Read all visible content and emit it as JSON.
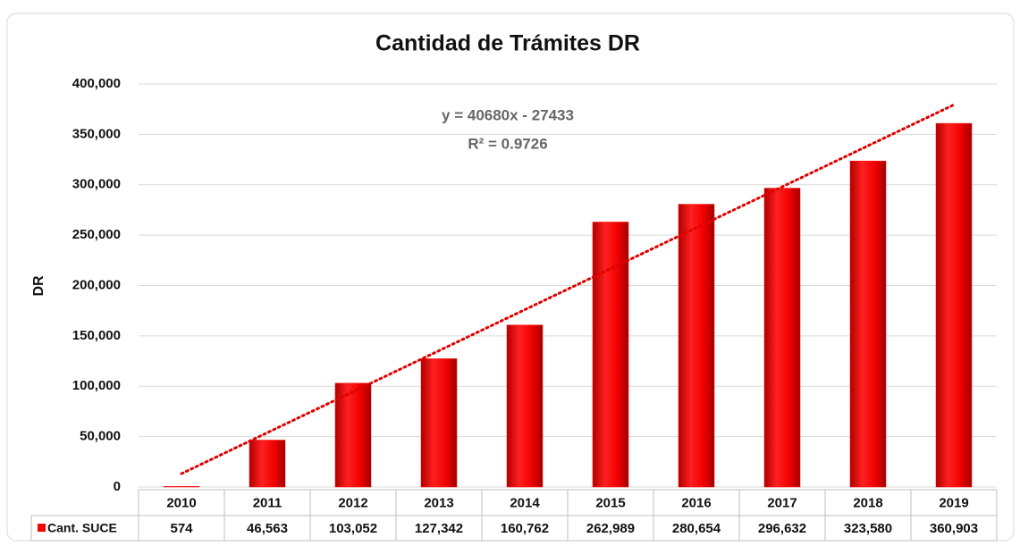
{
  "chart_data": {
    "type": "bar",
    "title": "Cantidad de Trámites DR",
    "y_label": "DR",
    "categories": [
      "2010",
      "2011",
      "2012",
      "2013",
      "2014",
      "2015",
      "2016",
      "2017",
      "2018",
      "2019"
    ],
    "series": [
      {
        "name": "Cant. SUCE",
        "color": "#ff0000",
        "values": [
          574,
          46563,
          103052,
          127342,
          160762,
          262989,
          280654,
          296632,
          323580,
          360903
        ],
        "value_labels": [
          "574",
          "46,563",
          "103,052",
          "127,342",
          "160,762",
          "262,989",
          "280,654",
          "296,632",
          "323,580",
          "360,903"
        ]
      }
    ],
    "ylim": [
      0,
      400000
    ],
    "yticks": [
      0,
      {
        "value": 50000,
        "label": "50,000"
      },
      {
        "value": 100000,
        "label": "100,000"
      },
      {
        "value": 150000,
        "label": "150,000"
      },
      {
        "value": 200000,
        "label": "200,000"
      },
      {
        "value": 250000,
        "label": "250,000"
      },
      {
        "value": 300000,
        "label": "300,000"
      },
      {
        "value": 350000,
        "label": "350,000"
      },
      {
        "value": 400000,
        "label": "400,000"
      }
    ],
    "grid": true,
    "trendline": {
      "slope": 40680,
      "intercept": -27433,
      "color": "#e00000",
      "equation": "y = 40680x - 27433",
      "r2": "R² = 0.9726"
    }
  }
}
